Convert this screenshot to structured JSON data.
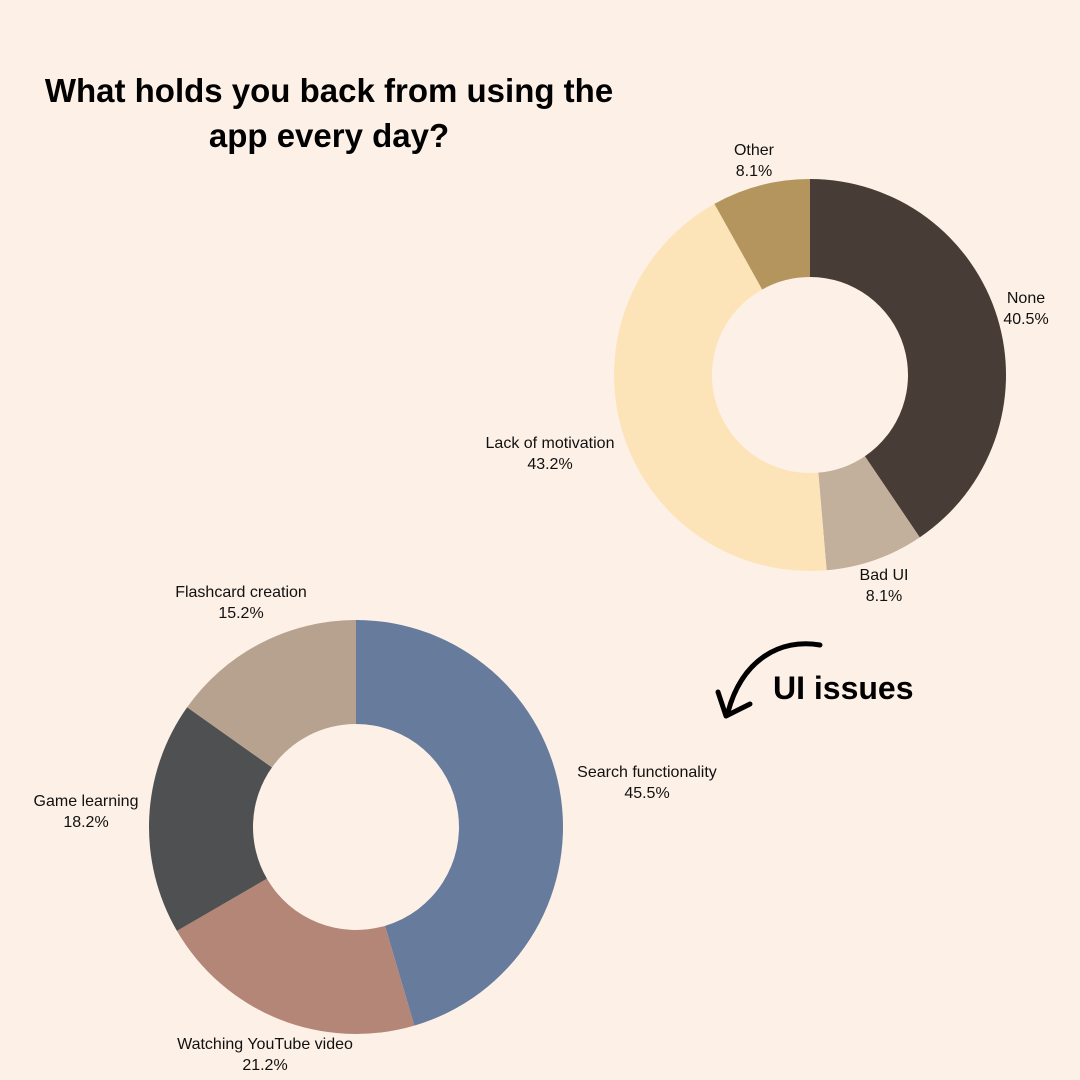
{
  "title": {
    "line1": "What holds you back from using the",
    "line2": "app every day?"
  },
  "annotation": {
    "text": "UI issues",
    "icon": "curved-arrow-icon"
  },
  "chart_data": [
    {
      "type": "pie",
      "donut": true,
      "title": "",
      "slices": [
        {
          "label": "None",
          "value": 40.5,
          "display": "40.5%",
          "color": "#483c37"
        },
        {
          "label": "Bad UI",
          "value": 8.1,
          "display": "8.1%",
          "color": "#c2b09c"
        },
        {
          "label": "Lack of motivation",
          "value": 43.2,
          "display": "43.2%",
          "color": "#fde4b8"
        },
        {
          "label": "Other",
          "value": 8.1,
          "display": "8.1%",
          "color": "#b3955d"
        }
      ]
    },
    {
      "type": "pie",
      "donut": true,
      "title": "",
      "slices": [
        {
          "label": "Search functionality",
          "value": 45.5,
          "display": "45.5%",
          "color": "#677b9d"
        },
        {
          "label": "Watching YouTube video",
          "value": 21.2,
          "display": "21.2%",
          "color": "#b48677"
        },
        {
          "label": "Game learning",
          "value": 18.2,
          "display": "18.2%",
          "color": "#4f5051"
        },
        {
          "label": "Flashcard creation",
          "value": 15.2,
          "display": "15.2%",
          "color": "#b6a28e"
        }
      ]
    }
  ]
}
